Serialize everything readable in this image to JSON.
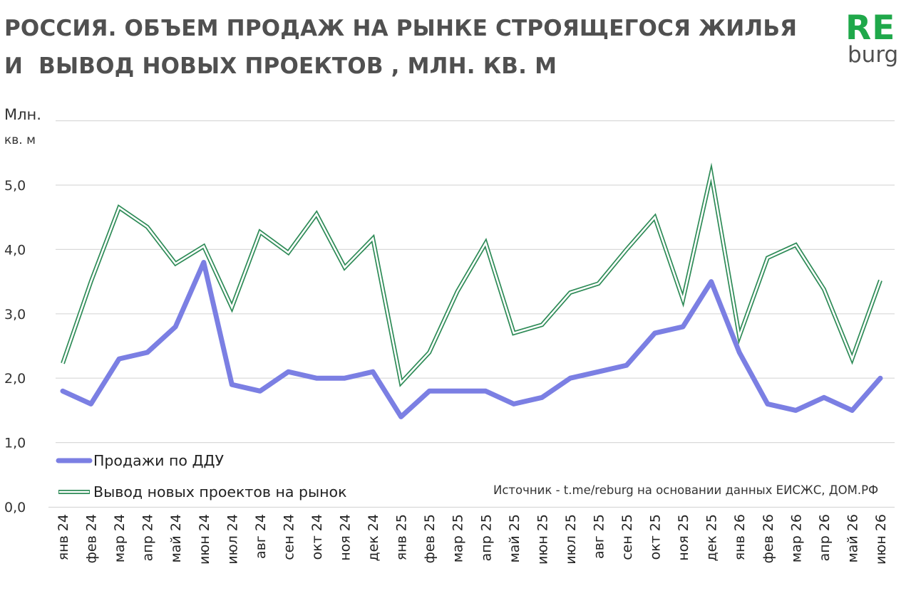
{
  "header": {
    "title_line1": "РОССИЯ. ОБЪЕМ ПРОДАЖ НА РЫНКЕ СТРОЯЩЕГОСЯ ЖИЛЬЯ",
    "title_line2": "И  ВЫВОД НОВЫХ ПРОЕКТОВ , МЛН. КВ. М"
  },
  "logo": {
    "top": "RE",
    "bottom": "burg",
    "color": "#1fa84a"
  },
  "source_text": "Источник - t.me/reburg на основании данных ЕИСЖС, ДОМ.РФ",
  "chart_data": {
    "type": "line",
    "title": "РОССИЯ. ОБЪЕМ ПРОДАЖ НА РЫНКЕ СТРОЯЩЕГОСЯ ЖИЛЬЯ И  ВЫВОД НОВЫХ ПРОЕКТОВ , МЛН. КВ. М",
    "ylabel_line1": "Млн.",
    "ylabel_line2": "кв. м",
    "ylim": [
      0,
      6
    ],
    "yticks": [
      0,
      1,
      2,
      3,
      4,
      5
    ],
    "ytick_labels": [
      "0,0",
      "1,0",
      "2,0",
      "3,0",
      "4,0",
      "5,0"
    ],
    "grid": true,
    "legend_position": "bottom-left, inside plot",
    "categories": [
      "янв 24",
      "фев 24",
      "мар 24",
      "апр 24",
      "май 24",
      "июн 24",
      "июл 24",
      "авг 24",
      "сен 24",
      "окт 24",
      "ноя 24",
      "дек 24",
      "янв 25",
      "фев 25",
      "мар 25",
      "апр 25",
      "май 25",
      "июн 25",
      "июл 25",
      "авг 25",
      "сен 25",
      "окт 25",
      "ноя 25",
      "дек 25",
      "янв 26",
      "фев 26",
      "мар 26",
      "апр 26",
      "май 26",
      "июн 26"
    ],
    "series": [
      {
        "name": "Продажи по ДДУ",
        "color": "#7b7fe3",
        "style": "solid",
        "values": [
          1.8,
          1.6,
          2.3,
          2.4,
          2.8,
          3.8,
          1.9,
          1.8,
          2.1,
          2.0,
          2.0,
          2.1,
          1.4,
          1.8,
          1.8,
          1.8,
          1.6,
          1.7,
          2.0,
          2.1,
          2.2,
          2.7,
          2.8,
          3.5,
          2.4,
          1.6,
          1.5,
          1.7,
          1.5,
          2.0
        ]
      },
      {
        "name": "Вывод новых проектов на рынок",
        "color": "#2e8b57",
        "style": "double",
        "values": [
          2.23,
          3.5,
          4.65,
          4.35,
          3.78,
          4.05,
          3.1,
          4.27,
          3.95,
          4.55,
          3.72,
          4.17,
          1.93,
          2.4,
          3.35,
          4.1,
          2.7,
          2.83,
          3.33,
          3.47,
          4.0,
          4.5,
          3.22,
          5.18,
          2.65,
          3.87,
          4.07,
          3.38,
          2.3,
          3.52
        ]
      }
    ]
  }
}
